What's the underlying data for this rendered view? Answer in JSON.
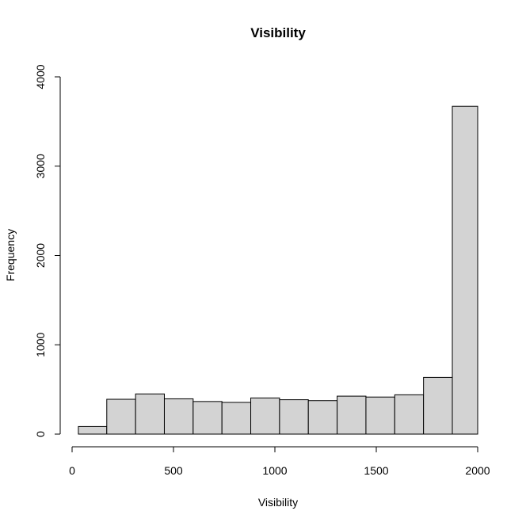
{
  "chart_data": {
    "type": "bar",
    "title": "Visibility",
    "xlabel": "Visibility",
    "ylabel": "Frequency",
    "bin_edges": [
      31,
      171,
      313,
      455,
      597,
      739,
      881,
      1023,
      1165,
      1307,
      1449,
      1591,
      1733,
      1875,
      2000
    ],
    "values": [
      85,
      390,
      450,
      395,
      365,
      355,
      405,
      385,
      375,
      425,
      415,
      440,
      635,
      3670
    ],
    "xlim": [
      0,
      2000
    ],
    "ylim": [
      0,
      4000
    ],
    "xticks": [
      0,
      500,
      1000,
      1500,
      2000
    ],
    "yticks": [
      0,
      1000,
      2000,
      3000,
      4000
    ],
    "grid": false,
    "bar_color": "#d3d3d3"
  }
}
